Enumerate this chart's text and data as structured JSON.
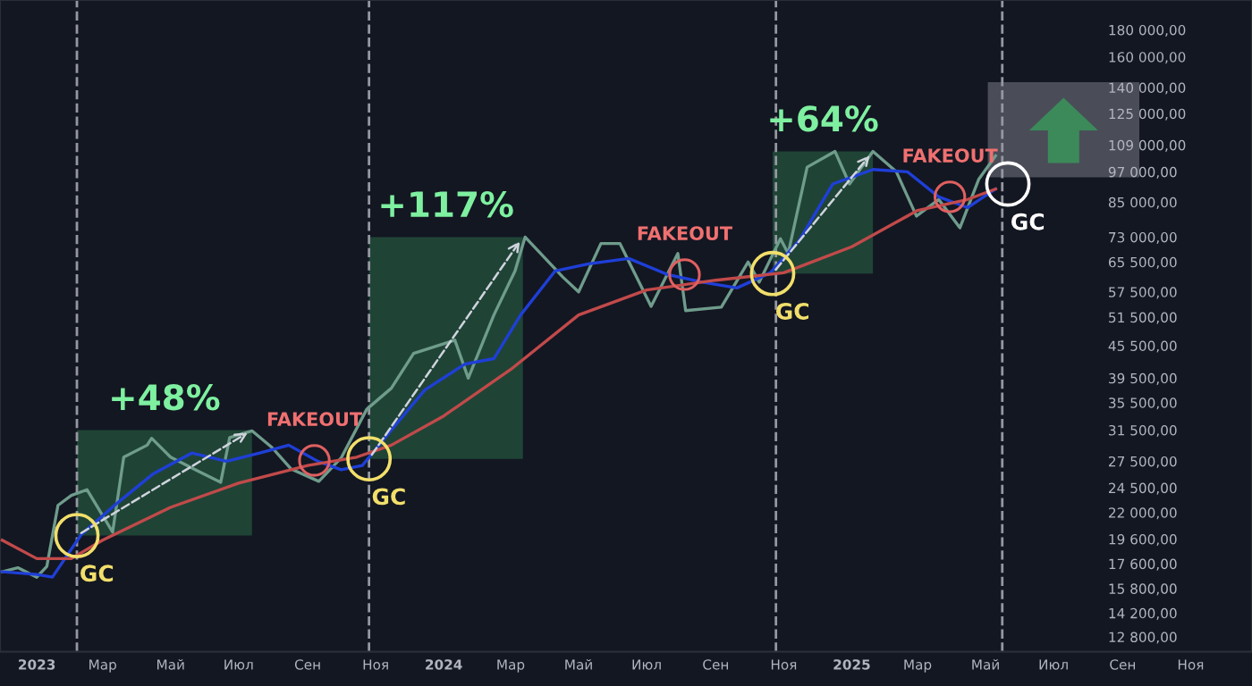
{
  "chart_data": {
    "type": "line",
    "log": "y",
    "series": [
      {
        "name": null,
        "color": "#6f9c8c",
        "x": [
          "2022-12-01",
          "2022-12-15",
          "2023-01-01",
          "2023-01-10",
          "2023-01-20",
          "2023-02-01",
          "2023-02-15",
          "2023-03-10",
          "2023-03-20",
          "2023-04-10",
          "2023-04-14",
          "2023-05-01",
          "2023-05-25",
          "2023-06-15",
          "2023-06-23",
          "2023-07-13",
          "2023-07-31",
          "2023-08-17",
          "2023-09-11",
          "2023-10-01",
          "2023-10-24",
          "2023-11-15",
          "2023-12-05",
          "2024-01-11",
          "2024-01-23",
          "2024-02-15",
          "2024-03-05",
          "2024-03-14",
          "2024-04-17",
          "2024-05-01",
          "2024-05-21",
          "2024-06-07",
          "2024-07-05",
          "2024-07-29",
          "2024-08-05",
          "2024-09-06",
          "2024-09-30",
          "2024-10-10",
          "2024-10-29",
          "2024-11-05",
          "2024-11-22",
          "2024-12-17",
          "2024-12-30",
          "2025-01-20",
          "2025-02-10",
          "2025-02-28",
          "2025-03-20",
          "2025-04-08",
          "2025-04-25",
          "2025-05-10"
        ],
        "values": [
          17000,
          17300,
          16600,
          17400,
          22700,
          23700,
          24300,
          20200,
          28000,
          29500,
          30400,
          28000,
          26400,
          25100,
          30500,
          31400,
          29200,
          26600,
          25200,
          27900,
          34500,
          37800,
          44000,
          46600,
          39500,
          52000,
          63000,
          73000,
          61300,
          57500,
          71000,
          71000,
          54000,
          68000,
          53000,
          53800,
          65500,
          60000,
          72500,
          68000,
          99000,
          106000,
          92000,
          106000,
          97000,
          80000,
          86000,
          76000,
          94000,
          104000
        ]
      },
      {
        "name": null,
        "color": "#1f3fd8",
        "x": [
          "2022-12-01",
          "2023-01-01",
          "2023-01-15",
          "2023-02-10",
          "2023-03-15",
          "2023-04-15",
          "2023-05-20",
          "2023-06-20",
          "2023-07-20",
          "2023-08-15",
          "2023-09-10",
          "2023-10-01",
          "2023-10-20",
          "2023-11-15",
          "2023-12-15",
          "2024-01-20",
          "2024-02-15",
          "2024-03-10",
          "2024-04-10",
          "2024-05-10",
          "2024-06-15",
          "2024-07-20",
          "2024-08-20",
          "2024-09-20",
          "2024-10-20",
          "2024-11-15",
          "2024-12-15",
          "2025-01-20",
          "2025-02-20",
          "2025-03-20",
          "2025-04-15",
          "2025-05-10"
        ],
        "values": [
          17000,
          16800,
          16600,
          20000,
          23000,
          26000,
          28500,
          27500,
          28500,
          29500,
          27500,
          26500,
          27000,
          31500,
          37500,
          42000,
          43000,
          52000,
          63000,
          65000,
          66500,
          62000,
          60000,
          58500,
          62500,
          72000,
          92000,
          98000,
          97000,
          87000,
          83000,
          90000
        ]
      },
      {
        "name": null,
        "color": "#c24a4a",
        "x": [
          "2022-12-01",
          "2023-01-01",
          "2023-02-01",
          "2023-03-01",
          "2023-05-01",
          "2023-07-01",
          "2023-09-01",
          "2023-10-15",
          "2023-11-15",
          "2024-01-01",
          "2024-03-01",
          "2024-05-01",
          "2024-07-01",
          "2024-09-01",
          "2024-11-01",
          "2025-01-01",
          "2025-03-01",
          "2025-04-15",
          "2025-05-10"
        ],
        "values": [
          19500,
          18000,
          18000,
          19500,
          22500,
          25000,
          27000,
          28000,
          29500,
          33500,
          41000,
          52000,
          58000,
          60500,
          62500,
          70000,
          82000,
          86000,
          90000
        ]
      }
    ],
    "xlim": [
      "2022-11-29",
      "2025-12-26"
    ],
    "xticks": [
      {
        "value": "2023-01-01",
        "label": "2023"
      },
      {
        "value": "2023-03-01",
        "label": "Мар"
      },
      {
        "value": "2023-05-01",
        "label": "Май"
      },
      {
        "value": "2023-07-01",
        "label": "Июл"
      },
      {
        "value": "2023-09-01",
        "label": "Сен"
      },
      {
        "value": "2023-11-01",
        "label": "Ноя"
      },
      {
        "value": "2024-01-01",
        "label": "2024"
      },
      {
        "value": "2024-03-01",
        "label": "Мар"
      },
      {
        "value": "2024-05-01",
        "label": "Май"
      },
      {
        "value": "2024-07-01",
        "label": "Июл"
      },
      {
        "value": "2024-09-01",
        "label": "Сен"
      },
      {
        "value": "2024-11-01",
        "label": "Ноя"
      },
      {
        "value": "2025-01-01",
        "label": "2025"
      },
      {
        "value": "2025-03-01",
        "label": "Мар"
      },
      {
        "value": "2025-05-01",
        "label": "Май"
      },
      {
        "value": "2025-07-01",
        "label": "Июл"
      },
      {
        "value": "2025-09-01",
        "label": "Сен"
      },
      {
        "value": "2025-11-01",
        "label": "Ноя"
      }
    ],
    "ylim": [
      12000,
      205000
    ],
    "yticks": [
      {
        "value": 12800,
        "label": "12 800,00"
      },
      {
        "value": 14200,
        "label": "14 200,00"
      },
      {
        "value": 15800,
        "label": "15 800,00"
      },
      {
        "value": 17600,
        "label": "17 600,00"
      },
      {
        "value": 19600,
        "label": "19 600,00"
      },
      {
        "value": 22000,
        "label": "22 000,00"
      },
      {
        "value": 24500,
        "label": "24 500,00"
      },
      {
        "value": 27500,
        "label": "27 500,00"
      },
      {
        "value": 31500,
        "label": "31 500,00"
      },
      {
        "value": 35500,
        "label": "35 500,00"
      },
      {
        "value": 39500,
        "label": "39 500,00"
      },
      {
        "value": 45500,
        "label": "45 500,00"
      },
      {
        "value": 51500,
        "label": "51 500,00"
      },
      {
        "value": 57500,
        "label": "57 500,00"
      },
      {
        "value": 65500,
        "label": "65 500,00"
      },
      {
        "value": 73000,
        "label": "73 000,00"
      },
      {
        "value": 85000,
        "label": "85 000,00"
      },
      {
        "value": 97000,
        "label": "97 000,00"
      },
      {
        "value": 109000,
        "label": "109 000,00"
      },
      {
        "value": 125000,
        "label": "125 000,00"
      },
      {
        "value": 140000,
        "label": "140 000,00"
      },
      {
        "value": 160000,
        "label": "160 000,00"
      },
      {
        "value": 180000,
        "label": "180 000,00"
      }
    ],
    "ref_lines": [
      {
        "axis": "x",
        "value": "2023-02-06",
        "color": "#9598a1",
        "line_style": "dashed"
      },
      {
        "axis": "x",
        "value": "2023-10-26",
        "color": "#9598a1",
        "line_style": "dashed"
      },
      {
        "axis": "x",
        "value": "2024-10-25",
        "color": "#9598a1",
        "line_style": "dashed"
      },
      {
        "axis": "x",
        "value": "2025-05-16",
        "color": "#9598a1",
        "line_style": "dashed"
      }
    ],
    "annotations": [
      {
        "text": "GC",
        "x": "2023-02-06",
        "y": 19900
      },
      {
        "text": "+48%",
        "x": "2023-07-13",
        "y": 31500
      },
      {
        "text": "FAKEOUT",
        "x": "2023-09-07",
        "y": 27600
      },
      {
        "text": "GC",
        "x": "2023-10-26",
        "y": 27800
      },
      {
        "text": "+117%",
        "x": "2024-03-12",
        "y": 73000
      },
      {
        "text": "FAKEOUT",
        "x": "2024-08-04",
        "y": 62000
      },
      {
        "text": "GC",
        "x": "2024-10-22",
        "y": 62300
      },
      {
        "text": "+64%",
        "x": "2025-01-20",
        "y": 106000
      },
      {
        "text": "FAKEOUT",
        "x": "2025-03-30",
        "y": 87000
      },
      {
        "text": "GC",
        "x": "2025-05-21",
        "y": 92000
      }
    ],
    "grid": false,
    "legend": false,
    "line_style": "solid",
    "marker": "none"
  }
}
